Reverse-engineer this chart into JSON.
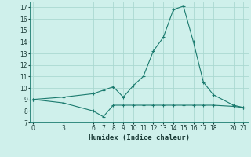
{
  "upper_x": [
    0,
    3,
    6,
    7,
    8,
    9,
    10,
    11,
    12,
    13,
    14,
    15,
    16,
    17,
    18,
    20,
    21
  ],
  "upper_y": [
    9.0,
    9.2,
    9.5,
    9.8,
    10.1,
    9.2,
    10.2,
    11.0,
    13.2,
    14.4,
    16.8,
    17.1,
    14.0,
    10.5,
    9.4,
    8.5,
    8.3
  ],
  "lower_x": [
    0,
    3,
    6,
    7,
    8,
    9,
    10,
    11,
    12,
    13,
    14,
    15,
    16,
    17,
    18,
    20,
    21
  ],
  "lower_y": [
    9.0,
    8.7,
    8.0,
    7.5,
    8.5,
    8.5,
    8.5,
    8.5,
    8.5,
    8.5,
    8.5,
    8.5,
    8.5,
    8.5,
    8.5,
    8.4,
    8.3
  ],
  "line_color": "#1a7a6e",
  "bg_color": "#cff0eb",
  "grid_color": "#aad9d1",
  "xlabel": "Humidex (Indice chaleur)",
  "ylim": [
    7,
    17.5
  ],
  "xlim": [
    -0.3,
    21.5
  ],
  "yticks": [
    7,
    8,
    9,
    10,
    11,
    12,
    13,
    14,
    15,
    16,
    17
  ],
  "xticks": [
    0,
    3,
    6,
    7,
    8,
    9,
    10,
    11,
    12,
    13,
    14,
    15,
    16,
    17,
    18,
    20,
    21
  ]
}
